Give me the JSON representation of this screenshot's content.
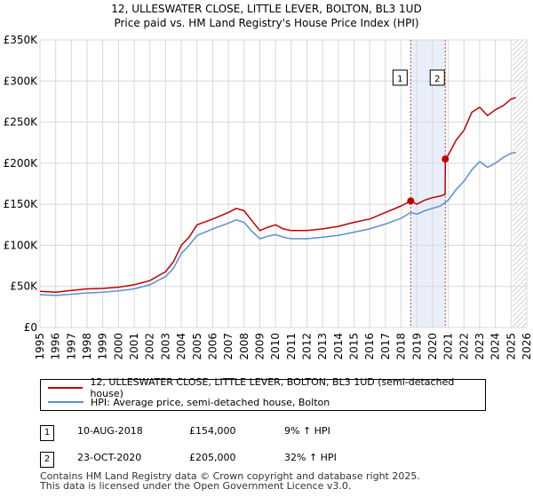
{
  "header": {
    "title": "12, ULLESWATER CLOSE, LITTLE LEVER, BOLTON, BL3 1UD",
    "subtitle": "Price paid vs. HM Land Registry's House Price Index (HPI)"
  },
  "colors": {
    "property": "#c00000",
    "hpi": "#5b8fcf",
    "band": "#e8effa",
    "marker_line": "#d04040",
    "grid": "#d8d8d8"
  },
  "chart_data": {
    "type": "line",
    "title": "Price paid vs. HM Land Registry's House Price Index (HPI)",
    "xlim": [
      1995,
      2026
    ],
    "ylim": [
      0,
      350000
    ],
    "x_ticks": [
      1995,
      1996,
      1997,
      1998,
      1999,
      2000,
      2001,
      2002,
      2003,
      2004,
      2005,
      2006,
      2007,
      2008,
      2009,
      2010,
      2011,
      2012,
      2013,
      2014,
      2015,
      2016,
      2017,
      2018,
      2019,
      2020,
      2021,
      2022,
      2023,
      2024,
      2025,
      2026
    ],
    "y_ticks": [
      0,
      50000,
      100000,
      150000,
      200000,
      250000,
      300000,
      350000
    ],
    "y_tick_labels": [
      "£0",
      "£50K",
      "£100K",
      "£150K",
      "£200K",
      "£250K",
      "£300K",
      "£350K"
    ],
    "series": [
      {
        "name": "12, ULLESWATER CLOSE, LITTLE LEVER, BOLTON, BL3 1UD (semi-detached house)",
        "color": "#c00000",
        "x": [
          1995,
          1996,
          1997,
          1998,
          1999,
          2000,
          2001,
          2002,
          2003,
          2003.5,
          2004,
          2004.5,
          2005,
          2006,
          2007,
          2007.5,
          2008,
          2008.5,
          2009,
          2009.5,
          2010,
          2010.5,
          2011,
          2012,
          2013,
          2014,
          2015,
          2016,
          2017,
          2018,
          2018.61,
          2019,
          2019.5,
          2020,
          2020.5,
          2020.8,
          2020.81,
          2021,
          2021.5,
          2022,
          2022.5,
          2023,
          2023.5,
          2024,
          2024.5,
          2025,
          2025.3
        ],
        "values": [
          44000,
          43000,
          45000,
          47000,
          47500,
          49000,
          52000,
          57000,
          68000,
          80000,
          100000,
          110000,
          125000,
          132000,
          140000,
          145000,
          142000,
          130000,
          118000,
          122000,
          125000,
          120000,
          118000,
          118000,
          120000,
          123000,
          128000,
          132000,
          140000,
          148000,
          154000,
          150000,
          155000,
          158000,
          160000,
          162000,
          205000,
          210000,
          228000,
          240000,
          262000,
          268000,
          258000,
          265000,
          270000,
          278000,
          280000
        ]
      },
      {
        "name": "HPI: Average price, semi-detached house, Bolton",
        "color": "#5b8fcf",
        "x": [
          1995,
          1996,
          1997,
          1998,
          1999,
          2000,
          2001,
          2002,
          2003,
          2003.5,
          2004,
          2004.5,
          2005,
          2006,
          2007,
          2007.5,
          2008,
          2008.5,
          2009,
          2009.5,
          2010,
          2010.5,
          2011,
          2012,
          2013,
          2014,
          2015,
          2016,
          2017,
          2018,
          2018.61,
          2019,
          2019.5,
          2020,
          2020.5,
          2021,
          2021.5,
          2022,
          2022.5,
          2023,
          2023.5,
          2024,
          2024.5,
          2025,
          2025.3
        ],
        "values": [
          40000,
          39000,
          40500,
          42000,
          43000,
          44500,
          47000,
          52000,
          62000,
          72000,
          90000,
          100000,
          112000,
          120000,
          127000,
          131000,
          128000,
          117000,
          108000,
          111000,
          113000,
          110000,
          108000,
          108000,
          110000,
          112000,
          116000,
          120000,
          126000,
          133000,
          140000,
          138000,
          142000,
          145000,
          148000,
          155000,
          168000,
          178000,
          192000,
          202000,
          195000,
          200000,
          207000,
          212000,
          213000
        ]
      }
    ],
    "purchases": [
      {
        "label": "1",
        "x": 2018.61,
        "value": 154000
      },
      {
        "label": "2",
        "x": 2020.81,
        "value": 205000
      }
    ]
  },
  "legend": {
    "property_label": "12, ULLESWATER CLOSE, LITTLE LEVER, BOLTON, BL3 1UD (semi-detached house)",
    "hpi_label": "HPI: Average price, semi-detached house, Bolton"
  },
  "transactions": [
    {
      "num": "1",
      "date": "10-AUG-2018",
      "price": "£154,000",
      "hpi": "9% ↑ HPI"
    },
    {
      "num": "2",
      "date": "23-OCT-2020",
      "price": "£205,000",
      "hpi": "32% ↑ HPI"
    }
  ],
  "footer": {
    "line1": "Contains HM Land Registry data © Crown copyright and database right 2025.",
    "line2": "This data is licensed under the Open Government Licence v3.0."
  }
}
